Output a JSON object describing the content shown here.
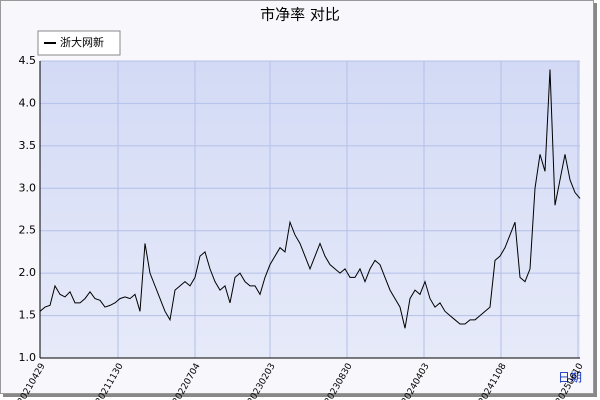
{
  "chart_data": {
    "type": "line",
    "title": "市净率  对比",
    "x_label": "日期",
    "series": [
      {
        "name": "浙大网新",
        "color": "#000000",
        "values": [
          1.55,
          1.6,
          1.62,
          1.85,
          1.75,
          1.72,
          1.78,
          1.65,
          1.65,
          1.7,
          1.78,
          1.7,
          1.68,
          1.6,
          1.62,
          1.65,
          1.7,
          1.72,
          1.7,
          1.75,
          1.55,
          2.35,
          2.0,
          1.85,
          1.7,
          1.55,
          1.45,
          1.8,
          1.85,
          1.9,
          1.85,
          1.95,
          2.2,
          2.25,
          2.05,
          1.9,
          1.8,
          1.85,
          1.65,
          1.95,
          2.0,
          1.9,
          1.85,
          1.85,
          1.75,
          1.95,
          2.1,
          2.2,
          2.3,
          2.25,
          2.6,
          2.45,
          2.35,
          2.2,
          2.05,
          2.2,
          2.35,
          2.2,
          2.1,
          2.05,
          2.0,
          2.05,
          1.95,
          1.95,
          2.05,
          1.9,
          2.05,
          2.15,
          2.1,
          1.95,
          1.8,
          1.7,
          1.6,
          1.35,
          1.7,
          1.8,
          1.75,
          1.9,
          1.7,
          1.6,
          1.65,
          1.55,
          1.5,
          1.45,
          1.4,
          1.4,
          1.45,
          1.45,
          1.5,
          1.55,
          1.6,
          2.15,
          2.2,
          2.3,
          2.45,
          2.6,
          1.95,
          1.9,
          2.05,
          3.0,
          3.4,
          3.2,
          4.4,
          2.8,
          3.1,
          3.4,
          3.1,
          2.95,
          2.88
        ]
      }
    ],
    "xlim": [
      0,
      108
    ],
    "xticks": [
      {
        "value": 0,
        "label": "20210429"
      },
      {
        "value": 15.6,
        "label": "20211130"
      },
      {
        "value": 31,
        "label": "20220704"
      },
      {
        "value": 46,
        "label": "20230203"
      },
      {
        "value": 61.4,
        "label": "20230830"
      },
      {
        "value": 76.8,
        "label": "20240403"
      },
      {
        "value": 92.2,
        "label": "20241108"
      },
      {
        "value": 107.6,
        "label": "20250610"
      }
    ],
    "ylim": [
      1.0,
      4.5
    ],
    "yticks": [
      {
        "value": 1.0,
        "label": "1.0"
      },
      {
        "value": 1.5,
        "label": "1.5"
      },
      {
        "value": 2.0,
        "label": "2.0"
      },
      {
        "value": 2.5,
        "label": "2.5"
      },
      {
        "value": 3.0,
        "label": "3.0"
      },
      {
        "value": 3.5,
        "label": "3.5"
      },
      {
        "value": 4.0,
        "label": "4.0"
      },
      {
        "value": 4.5,
        "label": "4.5"
      }
    ],
    "grid": true,
    "legend": "top-left"
  }
}
